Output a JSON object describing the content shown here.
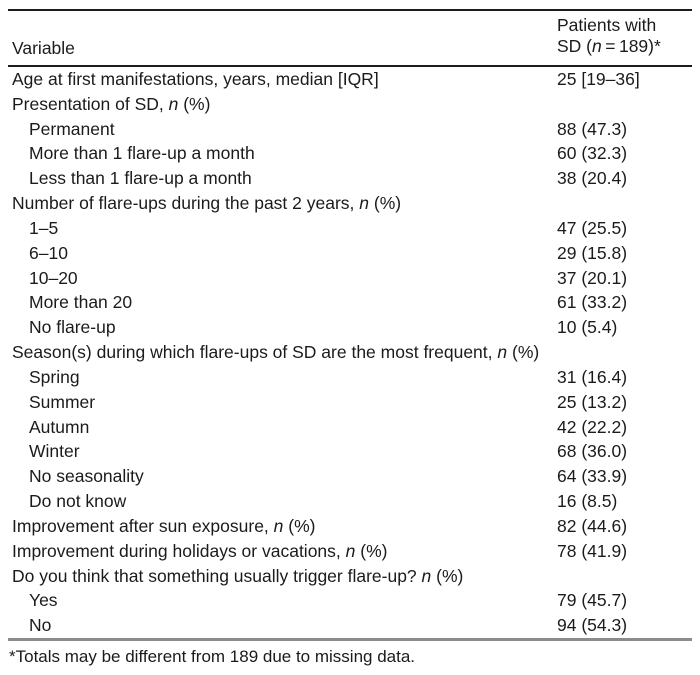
{
  "table": {
    "header": {
      "variable": "Variable",
      "patients_line1": "Patients with",
      "patients_line2_pre": "SD (",
      "patients_line2_n": "n",
      "patients_line2_post": " = 189)*"
    },
    "rows": [
      {
        "pre": "Age at first manifestations, years, median [IQR]",
        "value": "25 [19–36]"
      },
      {
        "pre": "Presentation of SD, ",
        "n": "n",
        "post": " (%)"
      },
      {
        "pre": "Permanent",
        "value": "88 (47.3)",
        "indent": true
      },
      {
        "pre": "More than 1 flare-up a month",
        "value": "60 (32.3)",
        "indent": true
      },
      {
        "pre": "Less than 1 flare-up a month",
        "value": "38 (20.4)",
        "indent": true
      },
      {
        "pre": "Number of flare-ups during the past 2 years, ",
        "n": "n",
        "post": " (%)"
      },
      {
        "pre": "1–5",
        "value": "47 (25.5)",
        "indent": true
      },
      {
        "pre": "6–10",
        "value": "29 (15.8)",
        "indent": true
      },
      {
        "pre": "10–20",
        "value": "37 (20.1)",
        "indent": true
      },
      {
        "pre": "More than 20",
        "value": "61 (33.2)",
        "indent": true
      },
      {
        "pre": "No flare-up",
        "value": "10 (5.4)",
        "indent": true
      },
      {
        "pre": "Season(s) during which flare-ups of SD are the most frequent, ",
        "n": "n",
        "post": " (%)"
      },
      {
        "pre": "Spring",
        "value": "31 (16.4)",
        "indent": true
      },
      {
        "pre": "Summer",
        "value": "25 (13.2)",
        "indent": true
      },
      {
        "pre": "Autumn",
        "value": "42 (22.2)",
        "indent": true
      },
      {
        "pre": "Winter",
        "value": "68 (36.0)",
        "indent": true
      },
      {
        "pre": "No seasonality",
        "value": "64 (33.9)",
        "indent": true
      },
      {
        "pre": "Do not know",
        "value": "16 (8.5)",
        "indent": true
      },
      {
        "pre": "Improvement after sun exposure, ",
        "n": "n",
        "post": " (%)",
        "value": "82 (44.6)"
      },
      {
        "pre": "Improvement during holidays or vacations, ",
        "n": "n",
        "post": " (%)",
        "value": "78 (41.9)"
      },
      {
        "pre": "Do you think that something usually trigger flare-up? ",
        "n": "n",
        "post": " (%)"
      },
      {
        "pre": "Yes",
        "value": "79 (45.7)",
        "indent": true
      },
      {
        "pre": "No",
        "value": "94 (54.3)",
        "indent": true
      }
    ],
    "footnote": "*Totals may be different from 189 due to missing data."
  },
  "colors": {
    "background": "#ffffff",
    "text": "#1b1b1b",
    "rule_dark": "#1c1c1c",
    "rule_gray": "#8c8c8c"
  }
}
